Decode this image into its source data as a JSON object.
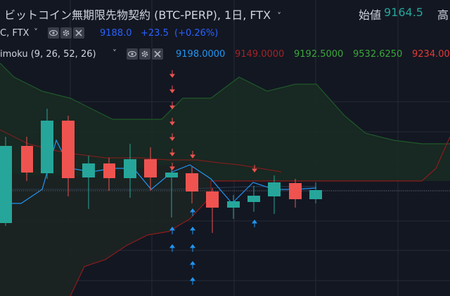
{
  "header": {
    "title": "ビットコイン無期限先物契約 (BTC-PERP), 1日, FTX",
    "chevron": "˅",
    "open_label": "始値",
    "open_value": "9164.5",
    "high_label": "高"
  },
  "indicator_ma": {
    "name": "C, FTX",
    "chevron": "˅",
    "icons": [
      "eye-icon",
      "gear-icon",
      "close-icon"
    ],
    "value": "9188.0",
    "change": "+23.5",
    "change_pct": "(+0.26%)",
    "color": "#2962ff"
  },
  "indicator_ichimoku": {
    "name": "imoku (9, 26, 52, 26)",
    "chevron": "˅",
    "icons": [
      "eye-icon",
      "gear-icon",
      "close-icon"
    ],
    "values": [
      "9198.0000",
      "9149.0000",
      "9192.5000",
      "9532.6250",
      "9234.00"
    ],
    "value_colors": [
      "#2196f3",
      "#a32424",
      "#3aa83a",
      "#3aa83a",
      "#e53935"
    ]
  },
  "colors": {
    "background": "#131722",
    "grid": "#2a2e39",
    "up": "#26a69a",
    "down": "#ef5350",
    "cloud": "#1b2b22",
    "tenkan": "#2196f3",
    "kijun": "#8c1c1c",
    "span_b": "#1e5a2a",
    "arrow_down": "#ef5350",
    "arrow_up": "#2196f3"
  }
}
